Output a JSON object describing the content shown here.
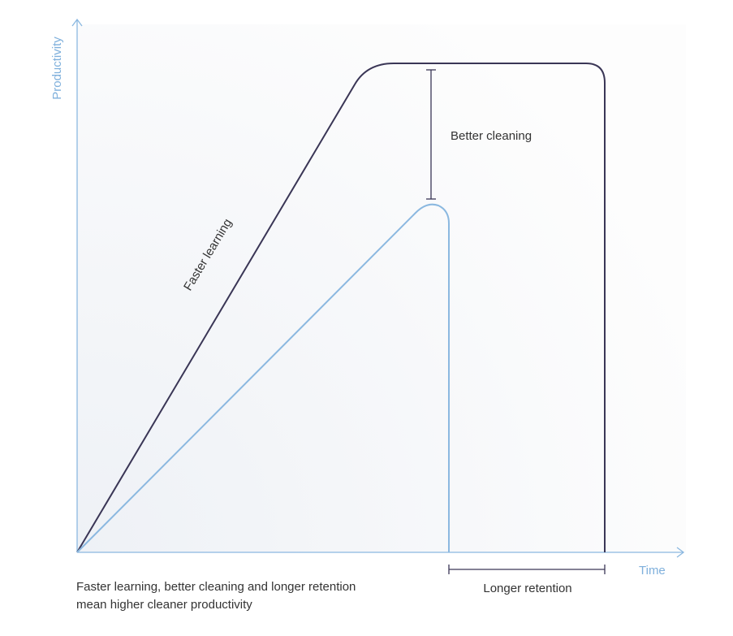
{
  "axes": {
    "y_label": "Productivity",
    "x_label": "Time"
  },
  "annotations": {
    "faster_learning": "Faster learning",
    "better_cleaning": "Better cleaning",
    "longer_retention": "Longer retention"
  },
  "caption": {
    "lines": [
      "Faster learning, better cleaning and longer retention",
      "mean higher cleaner productivity"
    ]
  }
}
